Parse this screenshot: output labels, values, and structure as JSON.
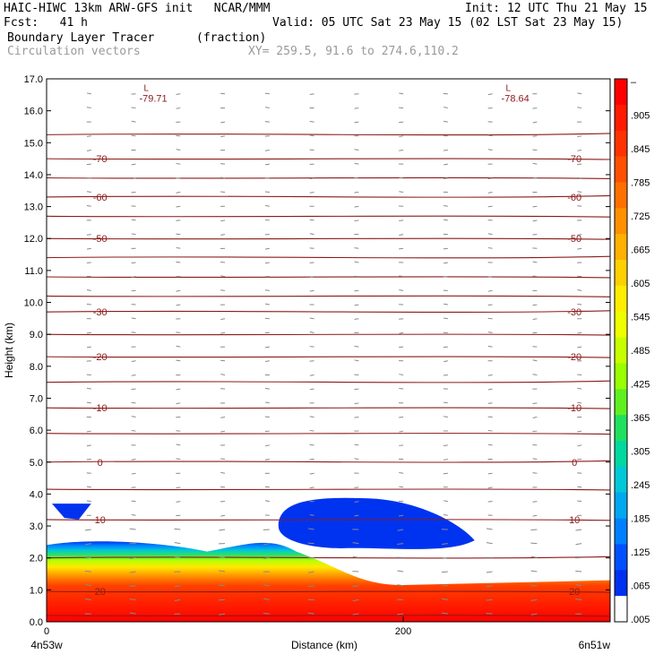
{
  "header": {
    "line1_left": "HAIC-HIWC 13km ARW-GFS init   NCAR/MMM",
    "line1_right": "Init: 12 UTC Thu 21 May 15",
    "line2_left": "Fcst:   41 h",
    "line2_right": "Valid: 05 UTC Sat 23 May 15 (02 LST Sat 23 May 15)",
    "line3_left": "Boundary Layer Tracer",
    "line3_units": "(fraction)",
    "line4_left": "Circulation vectors",
    "line4_xy": "XY= 259.5, 91.6 to 274.6,110.2"
  },
  "chart_data": {
    "type": "heatmap",
    "ylabel": "Height (km)",
    "xlabel": "Distance (km)",
    "x_left_label": "4n53w",
    "x_right_label": "6n51w",
    "xlim": [
      0,
      316
    ],
    "ylim": [
      0,
      17
    ],
    "x_ticks": [
      "0",
      "200"
    ],
    "y_ticks": [
      "0.0",
      "1.0",
      "2.0",
      "3.0",
      "4.0",
      "5.0",
      "6.0",
      "7.0",
      "8.0",
      "9.0",
      "10.0",
      "11.0",
      "12.0",
      "13.0",
      "14.0",
      "15.0",
      "16.0",
      "17.0"
    ],
    "colorbar": {
      "labels": [
        "–",
        ".905",
        ".845",
        ".785",
        ".725",
        ".665",
        ".605",
        ".545",
        ".485",
        ".425",
        ".365",
        ".305",
        ".245",
        ".185",
        ".125",
        ".065",
        ".005"
      ],
      "colors": [
        "#ff0000",
        "#ff1a00",
        "#ff3300",
        "#ff5000",
        "#ff7000",
        "#ff9000",
        "#ffb000",
        "#ffd000",
        "#ffee00",
        "#f0ff00",
        "#c8ff00",
        "#9aff00",
        "#60f020",
        "#20e060",
        "#00d8a0",
        "#00c8d8",
        "#00a8f0",
        "#0080ff",
        "#0050ff",
        "#0030f0",
        "#ffffff"
      ]
    },
    "temperature_contours": {
      "color": "#8b1a1a",
      "labels_left": [
        {
          "value": "-70",
          "y": 14.5
        },
        {
          "value": "-60",
          "y": 13.3
        },
        {
          "value": "-50",
          "y": 12.0
        },
        {
          "value": "-30",
          "y": 9.7
        },
        {
          "value": "-20",
          "y": 8.3
        },
        {
          "value": "-10",
          "y": 6.7
        },
        {
          "value": "0",
          "y": 5.0
        },
        {
          "value": "10",
          "y": 3.2
        },
        {
          "value": "20",
          "y": 0.95
        }
      ],
      "labels_right": [
        {
          "value": "-70",
          "y": 14.5
        },
        {
          "value": "-60",
          "y": 13.3
        },
        {
          "value": "-50",
          "y": 12.0
        },
        {
          "value": "-30",
          "y": 9.7
        },
        {
          "value": "-20",
          "y": 8.3
        },
        {
          "value": "-10",
          "y": 6.7
        },
        {
          "value": "0",
          "y": 5.0
        },
        {
          "value": "10",
          "y": 3.2
        },
        {
          "value": "20",
          "y": 0.95
        }
      ],
      "lines_y": [
        15.25,
        14.5,
        13.9,
        13.3,
        12.7,
        12.0,
        11.4,
        10.8,
        10.2,
        9.7,
        9.0,
        8.3,
        7.5,
        6.7,
        5.9,
        5.0,
        4.15,
        3.2,
        2.0,
        0.95,
        0.2
      ],
      "minima": [
        {
          "marker": "L",
          "value": "-79.71",
          "x": 55,
          "y": 16.85
        },
        {
          "marker": "L",
          "value": "-78.64",
          "x": 258,
          "y": 16.85
        }
      ]
    },
    "tracer_regions": {
      "surface_layer_top_left_km": 2.5,
      "surface_layer_top_right_km": 1.3,
      "elevated_patch": {
        "x": [
          130,
          240
        ],
        "y": [
          2.1,
          3.9
        ],
        "value": 0.005
      },
      "small_patch": {
        "x": [
          3,
          25
        ],
        "y": [
          3.2,
          3.7
        ],
        "value": 0.005
      }
    }
  }
}
